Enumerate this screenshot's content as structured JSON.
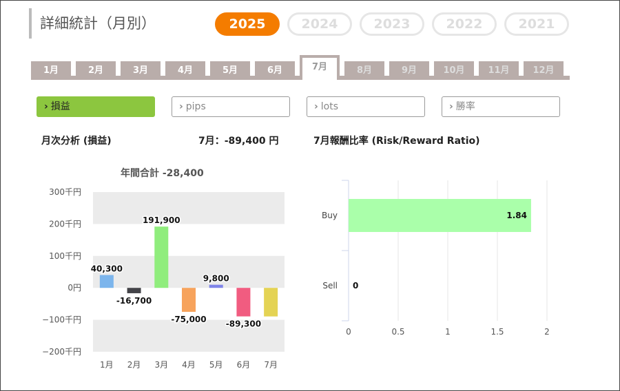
{
  "page": {
    "title": "詳細統計（月別）"
  },
  "years": [
    "2025",
    "2024",
    "2023",
    "2022",
    "2021"
  ],
  "active_year": "2025",
  "months": [
    "1月",
    "2月",
    "3月",
    "4月",
    "5月",
    "6月",
    "7月",
    "8月",
    "9月",
    "10月",
    "11月",
    "12月"
  ],
  "active_month": "7月",
  "metrics": [
    "損益",
    "pips",
    "lots",
    "勝率"
  ],
  "metric_icon": "chevron-right-icon",
  "active_metric": "損益",
  "left_panel": {
    "title": "月次分析 (損益)",
    "summary": "7月：-89,400 円",
    "annual_total": "年間合計 -28,400"
  },
  "right_panel": {
    "title": "7月報酬比率 (Risk/Reward Ratio)"
  },
  "colors": {
    "accent": "#f47c00",
    "active_metric": "#8cc63f",
    "month_tab": "#b9adaa"
  },
  "chart_data": [
    {
      "type": "bar",
      "categories": [
        "1月",
        "2月",
        "3月",
        "4月",
        "5月",
        "6月",
        "7月"
      ],
      "values": [
        40300,
        -16700,
        191900,
        -75000,
        9800,
        -89300,
        -89400
      ],
      "value_labels": [
        "40,300",
        "-16,700",
        "191,900",
        "-75,000",
        "9,800",
        "-89,300",
        ""
      ],
      "bar_colors": [
        "#7cb5ec",
        "#434348",
        "#90ed7d",
        "#f7a35c",
        "#8085e9",
        "#f15c80",
        "#e4d354"
      ],
      "ylim": [
        -200000,
        300000
      ],
      "yticks": [
        300000,
        200000,
        100000,
        0,
        -100000,
        -200000
      ],
      "ytick_labels": [
        "300千円",
        "200千円",
        "100千円",
        "0円",
        "−100千円",
        "−200千円"
      ],
      "grid": "alternating bands",
      "legend": "none"
    },
    {
      "type": "bar",
      "orientation": "horizontal",
      "categories": [
        "Buy",
        "Sell"
      ],
      "values": [
        1.84,
        0
      ],
      "value_labels": [
        "1.84",
        "0"
      ],
      "bar_color": "#aaffaa",
      "xlim": [
        0,
        2
      ],
      "xticks": [
        0,
        0.5,
        1,
        1.5,
        2
      ],
      "xtick_labels": [
        "0",
        "0.5",
        "1",
        "1.5",
        "2"
      ],
      "legend": "none"
    }
  ]
}
